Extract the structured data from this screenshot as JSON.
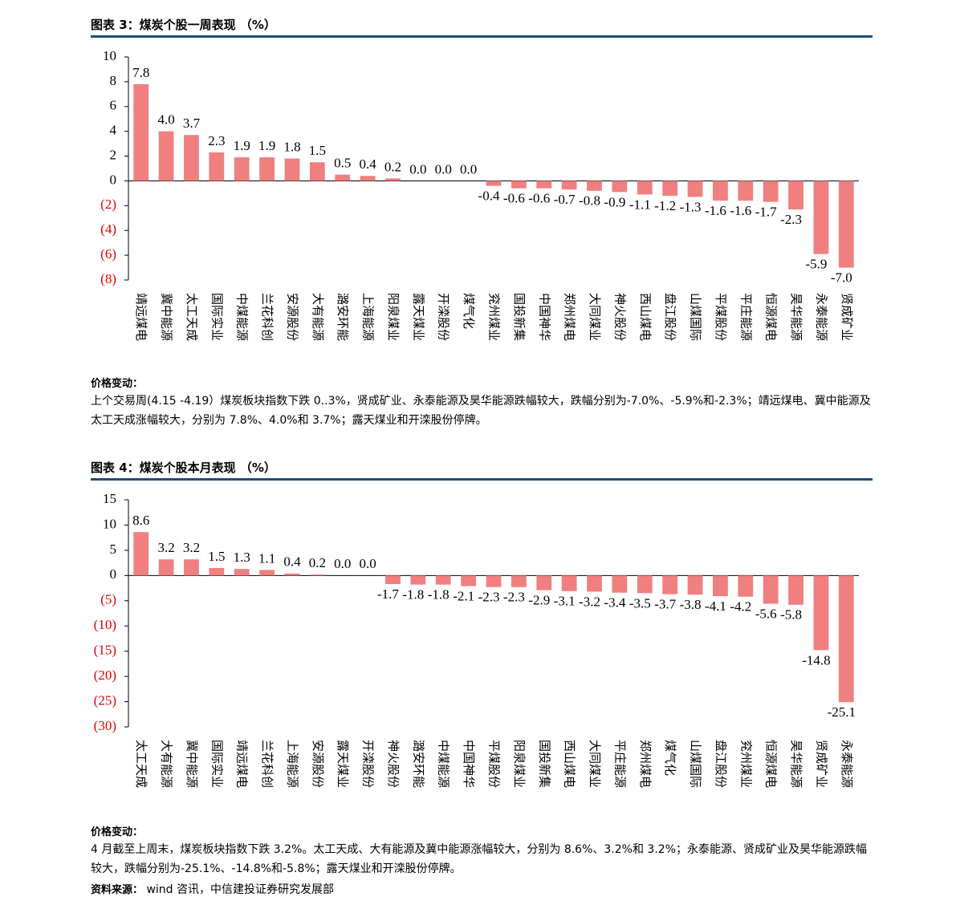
{
  "chart_data": [
    {
      "type": "bar",
      "title": "图表 3：煤炭个股一周表现 （%）",
      "categories": [
        "靖远煤电",
        "冀中能源",
        "太工天成",
        "国际实业",
        "中煤能源",
        "兰花科创",
        "安源股份",
        "大有能源",
        "潞安环能",
        "上海能源",
        "阳泉煤业",
        "露天煤业",
        "开滦股份",
        "煤气化",
        "兖州煤业",
        "国投新集",
        "中国神华",
        "郑州煤电",
        "大同煤业",
        "神火股份",
        "西山煤电",
        "盘江股份",
        "山煤国际",
        "平煤股份",
        "平庄能源",
        "恒源煤电",
        "昊华能源",
        "永泰能源",
        "贤成矿业"
      ],
      "values": [
        7.8,
        4.0,
        3.7,
        2.3,
        1.9,
        1.9,
        1.8,
        1.5,
        0.5,
        0.4,
        0.2,
        0.0,
        0.0,
        0.0,
        -0.4,
        -0.6,
        -0.6,
        -0.7,
        -0.8,
        -0.9,
        -1.1,
        -1.2,
        -1.3,
        -1.6,
        -1.6,
        -1.7,
        -2.3,
        -5.9,
        -7.0
      ],
      "value_labels": [
        "7.8",
        "4.0",
        "3.7",
        "2.3",
        "1.9",
        "1.9",
        "1.8",
        "1.5",
        "0.5",
        "0.4",
        "0.2",
        "0.0",
        "0.0",
        "0.0",
        "-0.4",
        "-0.6",
        "-0.6",
        "-0.7",
        "-0.8",
        "-0.9",
        "-1.1",
        "-1.2",
        "-1.3",
        "-1.6",
        "-1.6",
        "-1.7",
        "-2.3",
        "-5.9",
        "-7.0"
      ],
      "color": "#f08080",
      "negative_tick_color": "#e00000",
      "ylim": [
        -8,
        10
      ],
      "yticks": [
        10,
        8,
        6,
        4,
        2,
        0,
        {
          "value": -2,
          "label": "(2)"
        },
        {
          "value": -4,
          "label": "(4)"
        },
        {
          "value": -6,
          "label": "(6)"
        },
        {
          "value": -8,
          "label": "(8)"
        }
      ],
      "note_label": "价格变动：",
      "note": "上个交易周(4.15 -4.19）煤炭板块指数下跌 0..3%，贤成矿业、永泰能源及昊华能源跌幅较大，跌幅分别为-7.0%、-5.9%和-2.3%；靖远煤电、冀中能源及太工天成涨幅较大，分别为 7.8%、4.0%和 3.7%；露天煤业和开滦股份停牌。"
    },
    {
      "type": "bar",
      "title": "图表 4：煤炭个股本月表现 （%）",
      "categories": [
        "太工天成",
        "大有能源",
        "冀中能源",
        "国际实业",
        "靖远煤电",
        "兰花科创",
        "上海能源",
        "安源股份",
        "露天煤业",
        "开滦股份",
        "神火股份",
        "潞安环能",
        "中煤能源",
        "中国神华",
        "平煤股份",
        "阳泉煤业",
        "国投新集",
        "西山煤电",
        "大同煤业",
        "平庄能源",
        "郑州煤电",
        "煤气化",
        "山煤国际",
        "盘江股份",
        "兖州煤业",
        "恒源煤电",
        "昊华能源",
        "贤成矿业",
        "永泰能源"
      ],
      "values": [
        8.6,
        3.2,
        3.2,
        1.5,
        1.3,
        1.1,
        0.4,
        0.2,
        0.0,
        0.0,
        -1.7,
        -1.8,
        -1.8,
        -2.1,
        -2.3,
        -2.3,
        -2.9,
        -3.1,
        -3.2,
        -3.4,
        -3.5,
        -3.7,
        -3.8,
        -4.1,
        -4.2,
        -5.6,
        -5.8,
        -14.8,
        -25.1
      ],
      "value_labels": [
        "8.6",
        "3.2",
        "3.2",
        "1.5",
        "1.3",
        "1.1",
        "0.4",
        "0.2",
        "0.0",
        "0.0",
        "-1.7",
        "-1.8",
        "-1.8",
        "-2.1",
        "-2.3",
        "-2.3",
        "-2.9",
        "-3.1",
        "-3.2",
        "-3.4",
        "-3.5",
        "-3.7",
        "-3.8",
        "-4.1",
        "-4.2",
        "-5.6",
        "-5.8",
        "-14.8",
        "-25.1"
      ],
      "color": "#f08080",
      "negative_tick_color": "#e00000",
      "ylim": [
        -30,
        15
      ],
      "yticks": [
        15,
        10,
        5,
        0,
        {
          "value": -5,
          "label": "(5)"
        },
        {
          "value": -10,
          "label": "(10)"
        },
        {
          "value": -15,
          "label": "(15)"
        },
        {
          "value": -20,
          "label": "(20)"
        },
        {
          "value": -25,
          "label": "(25)"
        },
        {
          "value": -30,
          "label": "(30)"
        }
      ],
      "note_label": "价格变动：",
      "note": "4 月截至上周末，煤炭板块指数下跌 3.2%。太工天成、大有能源及冀中能源涨幅较大，分别为 8.6%、3.2%和 3.2%；永泰能源、贤成矿业及昊华能源跌幅较大，跌幅分别为-25.1%、-14.8%和-5.8%；露天煤业和开滦股份停牌。"
    }
  ],
  "source": {
    "label": "资料来源：",
    "text": "wind 咨讯，中信建投证券研究发展部"
  }
}
